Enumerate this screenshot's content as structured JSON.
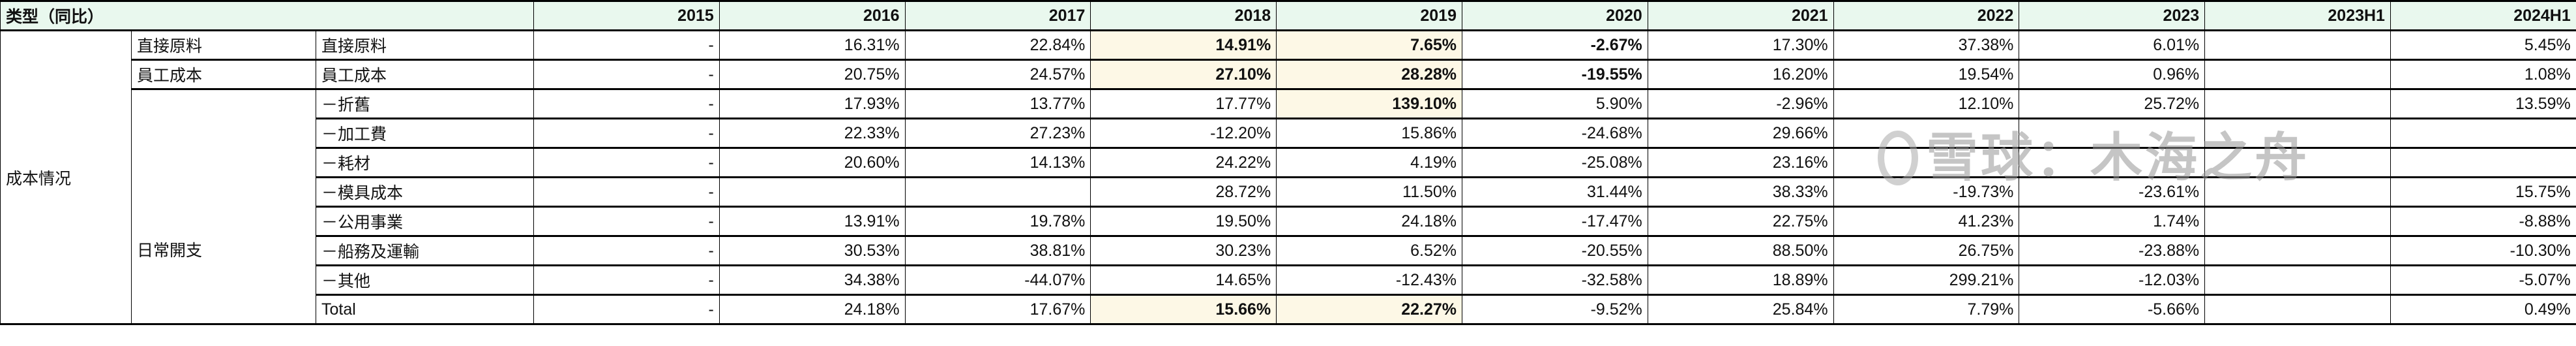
{
  "header": {
    "type_label": "类型（同比）",
    "years": [
      "2015",
      "2016",
      "2017",
      "2018",
      "2019",
      "2020",
      "2021",
      "2022",
      "2023",
      "2023H1",
      "2024H1"
    ]
  },
  "group_label": "成本情况",
  "rows": [
    {
      "cat": "直接原料",
      "sub": "直接原料",
      "values": [
        "-",
        "16.31%",
        "22.84%",
        "14.91%",
        "7.65%",
        "-2.67%",
        "17.30%",
        "37.38%",
        "6.01%",
        "",
        "5.45%"
      ],
      "bold": [
        3,
        4,
        5
      ],
      "highlight": [
        3,
        4
      ]
    },
    {
      "cat": "員工成本",
      "sub": "員工成本",
      "values": [
        "-",
        "20.75%",
        "24.57%",
        "27.10%",
        "28.28%",
        "-19.55%",
        "16.20%",
        "19.54%",
        "0.96%",
        "",
        "1.08%"
      ],
      "bold": [
        3,
        4,
        5
      ],
      "highlight": [
        3,
        4
      ]
    },
    {
      "cat": "日常開支",
      "sub": "－折舊",
      "values": [
        "-",
        "17.93%",
        "13.77%",
        "17.77%",
        "139.10%",
        "5.90%",
        "-2.96%",
        "12.10%",
        "25.72%",
        "",
        "13.59%"
      ],
      "bold": [
        4
      ],
      "highlight": [
        4
      ]
    },
    {
      "sub": "－加工費",
      "values": [
        "-",
        "22.33%",
        "27.23%",
        "-12.20%",
        "15.86%",
        "-24.68%",
        "29.66%",
        "",
        "",
        "",
        ""
      ],
      "bold": [],
      "highlight": []
    },
    {
      "sub": "－耗材",
      "values": [
        "-",
        "20.60%",
        "14.13%",
        "24.22%",
        "4.19%",
        "-25.08%",
        "23.16%",
        "",
        "",
        "",
        ""
      ],
      "bold": [],
      "highlight": []
    },
    {
      "sub": "－模具成本",
      "values": [
        "-",
        "",
        "",
        "28.72%",
        "11.50%",
        "31.44%",
        "38.33%",
        "-19.73%",
        "-23.61%",
        "",
        "15.75%"
      ],
      "bold": [],
      "highlight": []
    },
    {
      "sub": "－公用事業",
      "values": [
        "-",
        "13.91%",
        "19.78%",
        "19.50%",
        "24.18%",
        "-17.47%",
        "22.75%",
        "41.23%",
        "1.74%",
        "",
        "-8.88%"
      ],
      "bold": [],
      "highlight": []
    },
    {
      "sub": "－船務及運輸",
      "values": [
        "-",
        "30.53%",
        "38.81%",
        "30.23%",
        "6.52%",
        "-20.55%",
        "88.50%",
        "26.75%",
        "-23.88%",
        "",
        "-10.30%"
      ],
      "bold": [],
      "highlight": []
    },
    {
      "sub": "－其他",
      "values": [
        "-",
        "34.38%",
        "-44.07%",
        "14.65%",
        "-12.43%",
        "-32.58%",
        "18.89%",
        "299.21%",
        "-12.03%",
        "",
        "-5.07%"
      ],
      "bold": [],
      "highlight": []
    },
    {
      "sub": "Total",
      "values": [
        "-",
        "24.18%",
        "17.67%",
        "15.66%",
        "22.27%",
        "-9.52%",
        "25.84%",
        "7.79%",
        "-5.66%",
        "",
        "0.49%"
      ],
      "bold": [
        3,
        4
      ],
      "highlight": [
        3,
        4
      ]
    }
  ],
  "watermark": "雪球：木海之舟",
  "colors": {
    "header_bg": "#e9f8ee",
    "highlight_bg": "#fdf8e6"
  }
}
